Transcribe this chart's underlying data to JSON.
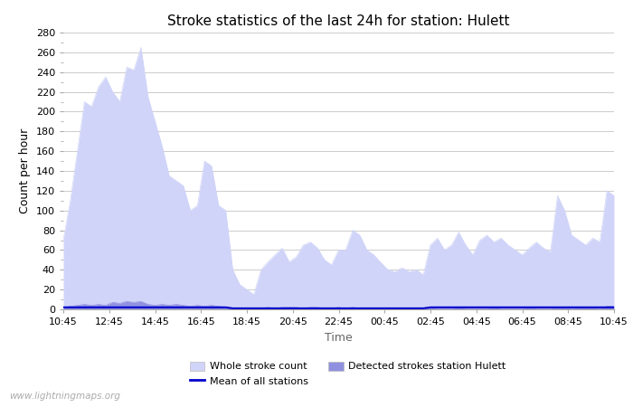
{
  "title": "Stroke statistics of the last 24h for station: Hulett",
  "xlabel": "Time",
  "ylabel": "Count per hour",
  "watermark": "www.lightningmaps.org",
  "x_labels": [
    "10:45",
    "12:45",
    "14:45",
    "16:45",
    "18:45",
    "20:45",
    "22:45",
    "00:45",
    "02:45",
    "04:45",
    "06:45",
    "08:45",
    "10:45"
  ],
  "ylim": [
    0,
    280
  ],
  "yticks": [
    0,
    20,
    40,
    60,
    80,
    100,
    120,
    140,
    160,
    180,
    200,
    220,
    240,
    260,
    280
  ],
  "whole_stroke_color": "#d0d4f8",
  "detected_stroke_color": "#9090e0",
  "mean_line_color": "#0000cc",
  "whole_stroke": [
    70,
    110,
    160,
    210,
    205,
    225,
    235,
    220,
    210,
    245,
    242,
    265,
    215,
    190,
    165,
    135,
    130,
    125,
    100,
    105,
    150,
    145,
    105,
    100,
    40,
    25,
    20,
    15,
    40,
    48,
    55,
    62,
    48,
    53,
    65,
    68,
    62,
    50,
    45,
    60,
    60,
    80,
    75,
    60,
    55,
    47,
    40,
    38,
    42,
    38,
    40,
    35,
    65,
    72,
    60,
    65,
    78,
    65,
    55,
    70,
    75,
    68,
    72,
    65,
    60,
    55,
    62,
    68,
    62,
    58,
    115,
    100,
    75,
    70,
    65,
    72,
    68,
    120,
    115
  ],
  "detected_stroke": [
    2,
    3,
    4,
    5,
    4,
    5,
    4,
    7,
    6,
    8,
    7,
    8,
    5,
    4,
    5,
    4,
    5,
    4,
    3,
    4,
    3,
    4,
    3,
    2,
    1,
    1,
    1,
    0,
    1,
    2,
    1,
    2,
    2,
    2,
    1,
    2,
    2,
    1,
    1,
    2,
    1,
    2,
    1,
    1,
    1,
    1,
    1,
    1,
    1,
    1,
    0,
    1,
    2,
    1,
    1,
    1,
    2,
    1,
    1,
    1,
    1,
    2,
    1,
    1,
    1,
    1,
    2,
    1,
    1,
    1,
    2,
    2,
    1,
    2,
    2,
    2,
    1,
    3,
    3
  ],
  "mean_line": [
    2,
    2,
    2,
    2,
    2,
    2,
    2,
    2,
    2,
    2,
    2,
    2,
    2,
    2,
    2,
    2,
    2,
    2,
    2,
    2,
    2,
    2,
    2,
    2,
    1,
    1,
    1,
    1,
    1,
    1,
    1,
    1,
    1,
    1,
    1,
    1,
    1,
    1,
    1,
    1,
    1,
    1,
    1,
    1,
    1,
    1,
    1,
    1,
    1,
    1,
    1,
    1,
    2,
    2,
    2,
    2,
    2,
    2,
    2,
    2,
    2,
    2,
    2,
    2,
    2,
    2,
    2,
    2,
    2,
    2,
    2,
    2,
    2,
    2,
    2,
    2,
    2,
    2,
    2
  ]
}
